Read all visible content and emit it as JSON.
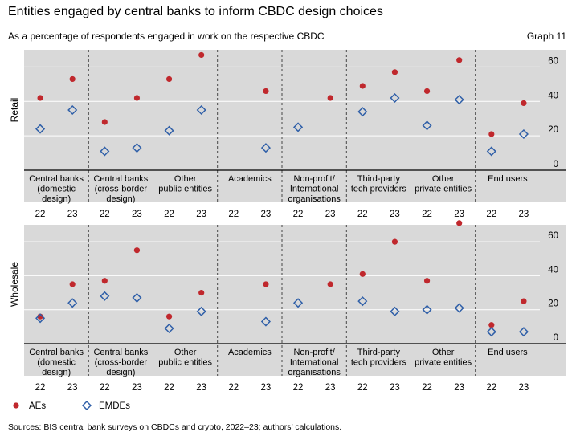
{
  "header": {
    "title": "Entities engaged by central banks to inform CBDC design choices",
    "subtitle": "As a percentage of respondents engaged in work on the respective CBDC",
    "graph_label": "Graph 11"
  },
  "footer": {
    "source": "Sources: BIS central bank surveys on CBDCs and crypto, 2022–23; authors’ calculations."
  },
  "colors": {
    "ae": "#c0282d",
    "emde": "#2f5fa8",
    "panel_bg": "#d9d9d9"
  },
  "legend": [
    {
      "key": "ae",
      "label": "AEs",
      "marker": "circle"
    },
    {
      "key": "emde",
      "label": "EMDEs",
      "marker": "diamond"
    }
  ],
  "chart_data": [
    {
      "type": "scatter",
      "title": "Retail",
      "ylabel": "Retail",
      "ylim": [
        0,
        70
      ],
      "yticks": [
        0,
        20,
        40,
        60
      ],
      "categories": [
        [
          "Central banks",
          "(domestic",
          "design)"
        ],
        [
          "Central banks",
          "(cross-border",
          "design)"
        ],
        [
          "Other",
          "public entities"
        ],
        [
          "Academics"
        ],
        [
          "Non-profit/",
          "International",
          "organisations"
        ],
        [
          "Third-party",
          "tech providers"
        ],
        [
          "Other",
          "private entities"
        ],
        [
          "End users"
        ]
      ],
      "years": [
        "22",
        "23"
      ],
      "series": [
        {
          "name": "AEs",
          "key": "ae",
          "values": [
            [
              42,
              53
            ],
            [
              28,
              42
            ],
            [
              53,
              67
            ],
            [
              null,
              46
            ],
            [
              null,
              42
            ],
            [
              49,
              57
            ],
            [
              46,
              64
            ],
            [
              21,
              39
            ]
          ]
        },
        {
          "name": "EMDEs",
          "key": "emde",
          "values": [
            [
              24,
              35
            ],
            [
              11,
              13
            ],
            [
              23,
              35
            ],
            [
              null,
              13
            ],
            [
              25,
              null
            ],
            [
              34,
              42
            ],
            [
              26,
              41
            ],
            [
              11,
              21
            ]
          ]
        }
      ]
    },
    {
      "type": "scatter",
      "title": "Wholesale",
      "ylabel": "Wholesale",
      "ylim": [
        0,
        70
      ],
      "yticks": [
        0,
        20,
        40,
        60
      ],
      "categories": [
        [
          "Central banks",
          "(domestic",
          "design)"
        ],
        [
          "Central banks",
          "(cross-border",
          "design)"
        ],
        [
          "Other",
          "public entities"
        ],
        [
          "Academics"
        ],
        [
          "Non-profit/",
          "International",
          "organisations"
        ],
        [
          "Third-party",
          "tech providers"
        ],
        [
          "Other",
          "private entities"
        ],
        [
          "End users"
        ]
      ],
      "years": [
        "22",
        "23"
      ],
      "series": [
        {
          "name": "AEs",
          "key": "ae",
          "values": [
            [
              16,
              35
            ],
            [
              37,
              55
            ],
            [
              16,
              30
            ],
            [
              null,
              35
            ],
            [
              null,
              35
            ],
            [
              41,
              60
            ],
            [
              37,
              71
            ],
            [
              11,
              25
            ]
          ]
        },
        {
          "name": "EMDEs",
          "key": "emde",
          "values": [
            [
              15,
              24
            ],
            [
              28,
              27
            ],
            [
              9,
              19
            ],
            [
              null,
              13
            ],
            [
              24,
              null
            ],
            [
              25,
              19
            ],
            [
              20,
              21
            ],
            [
              7,
              7
            ]
          ]
        }
      ]
    }
  ]
}
